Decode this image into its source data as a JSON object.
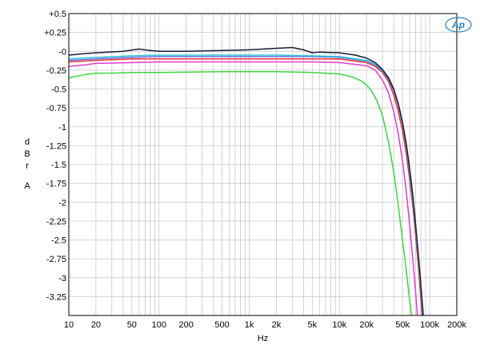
{
  "chart_data": {
    "type": "line",
    "title": "",
    "xlabel": "Hz",
    "ylabel": "dBrA",
    "ylabel_chars": [
      "d",
      "B",
      "r",
      "A"
    ],
    "x_scale": "log",
    "xlim": [
      10,
      200000
    ],
    "ylim": [
      -3.5,
      0.5
    ],
    "x_ticks": [
      {
        "value": 10,
        "label": "10"
      },
      {
        "value": 20,
        "label": "20"
      },
      {
        "value": 50,
        "label": "50"
      },
      {
        "value": 100,
        "label": "100"
      },
      {
        "value": 200,
        "label": "200"
      },
      {
        "value": 500,
        "label": "500"
      },
      {
        "value": 1000,
        "label": "1k"
      },
      {
        "value": 2000,
        "label": "2k"
      },
      {
        "value": 5000,
        "label": "5k"
      },
      {
        "value": 10000,
        "label": "10k"
      },
      {
        "value": 20000,
        "label": "20k"
      },
      {
        "value": 50000,
        "label": "50k"
      },
      {
        "value": 100000,
        "label": "100k"
      },
      {
        "value": 200000,
        "label": "200k"
      }
    ],
    "y_ticks": [
      {
        "value": 0.5,
        "label": "+0.5"
      },
      {
        "value": 0.25,
        "label": "+0.25"
      },
      {
        "value": 0,
        "label": "-0"
      },
      {
        "value": -0.25,
        "label": "-0.25"
      },
      {
        "value": -0.5,
        "label": "-0.5"
      },
      {
        "value": -0.75,
        "label": "-0.75"
      },
      {
        "value": -1,
        "label": "-1"
      },
      {
        "value": -1.25,
        "label": "-1.25"
      },
      {
        "value": -1.5,
        "label": "-1.5"
      },
      {
        "value": -1.75,
        "label": "-1.75"
      },
      {
        "value": -2,
        "label": "-2"
      },
      {
        "value": -2.25,
        "label": "-2.25"
      },
      {
        "value": -2.5,
        "label": "-2.5"
      },
      {
        "value": -2.75,
        "label": "-2.75"
      },
      {
        "value": -3,
        "label": "-3"
      },
      {
        "value": -3.25,
        "label": "-3.25"
      }
    ],
    "grid": true,
    "series": [
      {
        "color": "#3dd63d",
        "points": [
          [
            10,
            -0.35
          ],
          [
            15,
            -0.31
          ],
          [
            20,
            -0.29
          ],
          [
            30,
            -0.29
          ],
          [
            50,
            -0.28
          ],
          [
            100,
            -0.28
          ],
          [
            500,
            -0.27
          ],
          [
            1000,
            -0.27
          ],
          [
            2000,
            -0.27
          ],
          [
            5000,
            -0.28
          ],
          [
            10000,
            -0.3
          ],
          [
            14000,
            -0.34
          ],
          [
            18000,
            -0.4
          ],
          [
            22000,
            -0.5
          ],
          [
            26000,
            -0.65
          ],
          [
            30000,
            -0.85
          ],
          [
            35000,
            -1.2
          ],
          [
            40000,
            -1.6
          ],
          [
            45000,
            -2.05
          ],
          [
            50000,
            -2.5
          ],
          [
            55000,
            -2.9
          ],
          [
            60000,
            -3.3
          ],
          [
            63000,
            -3.5
          ]
        ]
      },
      {
        "color": "#e03cd0",
        "points": [
          [
            10,
            -0.2
          ],
          [
            15,
            -0.18
          ],
          [
            20,
            -0.16
          ],
          [
            50,
            -0.15
          ],
          [
            100,
            -0.14
          ],
          [
            500,
            -0.14
          ],
          [
            1000,
            -0.14
          ],
          [
            2000,
            -0.14
          ],
          [
            5000,
            -0.14
          ],
          [
            10000,
            -0.15
          ],
          [
            20000,
            -0.19
          ],
          [
            25000,
            -0.25
          ],
          [
            30000,
            -0.38
          ],
          [
            35000,
            -0.55
          ],
          [
            40000,
            -0.8
          ],
          [
            45000,
            -1.1
          ],
          [
            50000,
            -1.45
          ],
          [
            55000,
            -1.85
          ],
          [
            60000,
            -2.3
          ],
          [
            65000,
            -2.75
          ],
          [
            70000,
            -3.2
          ],
          [
            73000,
            -3.5
          ]
        ]
      },
      {
        "color": "#e83030",
        "points": [
          [
            10,
            -0.14
          ],
          [
            20,
            -0.12
          ],
          [
            50,
            -0.1
          ],
          [
            100,
            -0.1
          ],
          [
            500,
            -0.1
          ],
          [
            1000,
            -0.1
          ],
          [
            2000,
            -0.1
          ],
          [
            5000,
            -0.1
          ],
          [
            10000,
            -0.1
          ],
          [
            20000,
            -0.15
          ],
          [
            25000,
            -0.2
          ],
          [
            30000,
            -0.28
          ],
          [
            35000,
            -0.4
          ],
          [
            40000,
            -0.58
          ],
          [
            45000,
            -0.8
          ],
          [
            50000,
            -1.05
          ],
          [
            55000,
            -1.35
          ],
          [
            60000,
            -1.7
          ],
          [
            65000,
            -2.05
          ],
          [
            70000,
            -2.45
          ],
          [
            75000,
            -2.85
          ],
          [
            80000,
            -3.3
          ],
          [
            82000,
            -3.5
          ]
        ]
      },
      {
        "color": "#6a6ae8",
        "points": [
          [
            10,
            -0.12
          ],
          [
            20,
            -0.1
          ],
          [
            50,
            -0.08
          ],
          [
            100,
            -0.07
          ],
          [
            500,
            -0.07
          ],
          [
            1000,
            -0.07
          ],
          [
            2000,
            -0.07
          ],
          [
            5000,
            -0.07
          ],
          [
            10000,
            -0.08
          ],
          [
            20000,
            -0.13
          ],
          [
            25000,
            -0.18
          ],
          [
            30000,
            -0.26
          ],
          [
            35000,
            -0.37
          ],
          [
            40000,
            -0.52
          ],
          [
            45000,
            -0.72
          ],
          [
            50000,
            -0.96
          ],
          [
            55000,
            -1.25
          ],
          [
            60000,
            -1.6
          ],
          [
            65000,
            -1.95
          ],
          [
            70000,
            -2.35
          ],
          [
            75000,
            -2.75
          ],
          [
            80000,
            -3.15
          ],
          [
            84000,
            -3.5
          ]
        ]
      },
      {
        "color": "#2fc6d6",
        "points": [
          [
            10,
            -0.1
          ],
          [
            20,
            -0.08
          ],
          [
            50,
            -0.06
          ],
          [
            100,
            -0.05
          ],
          [
            500,
            -0.05
          ],
          [
            1000,
            -0.05
          ],
          [
            2000,
            -0.05
          ],
          [
            5000,
            -0.06
          ],
          [
            10000,
            -0.07
          ],
          [
            20000,
            -0.12
          ],
          [
            25000,
            -0.17
          ],
          [
            30000,
            -0.25
          ],
          [
            35000,
            -0.35
          ],
          [
            40000,
            -0.5
          ],
          [
            45000,
            -0.7
          ],
          [
            50000,
            -0.95
          ],
          [
            55000,
            -1.25
          ],
          [
            60000,
            -1.6
          ],
          [
            65000,
            -1.95
          ],
          [
            70000,
            -2.35
          ],
          [
            75000,
            -2.75
          ],
          [
            80000,
            -3.15
          ],
          [
            84000,
            -3.5
          ]
        ]
      },
      {
        "color": "#1a1a3a",
        "points": [
          [
            10,
            -0.05
          ],
          [
            15,
            -0.03
          ],
          [
            20,
            -0.02
          ],
          [
            40,
            0.0
          ],
          [
            60,
            0.03
          ],
          [
            80,
            0.01
          ],
          [
            100,
            0.0
          ],
          [
            200,
            0.0
          ],
          [
            500,
            0.01
          ],
          [
            1000,
            0.02
          ],
          [
            2000,
            0.04
          ],
          [
            3000,
            0.05
          ],
          [
            4000,
            0.02
          ],
          [
            5000,
            -0.02
          ],
          [
            6000,
            -0.01
          ],
          [
            10000,
            -0.02
          ],
          [
            15000,
            -0.05
          ],
          [
            20000,
            -0.09
          ],
          [
            25000,
            -0.15
          ],
          [
            30000,
            -0.24
          ],
          [
            35000,
            -0.35
          ],
          [
            40000,
            -0.5
          ],
          [
            45000,
            -0.7
          ],
          [
            50000,
            -0.94
          ],
          [
            55000,
            -1.22
          ],
          [
            60000,
            -1.55
          ],
          [
            65000,
            -1.9
          ],
          [
            70000,
            -2.3
          ],
          [
            75000,
            -2.7
          ],
          [
            80000,
            -3.1
          ],
          [
            85000,
            -3.5
          ]
        ]
      }
    ]
  },
  "logo": {
    "text": "Ap",
    "color": "#2a7fc0"
  }
}
